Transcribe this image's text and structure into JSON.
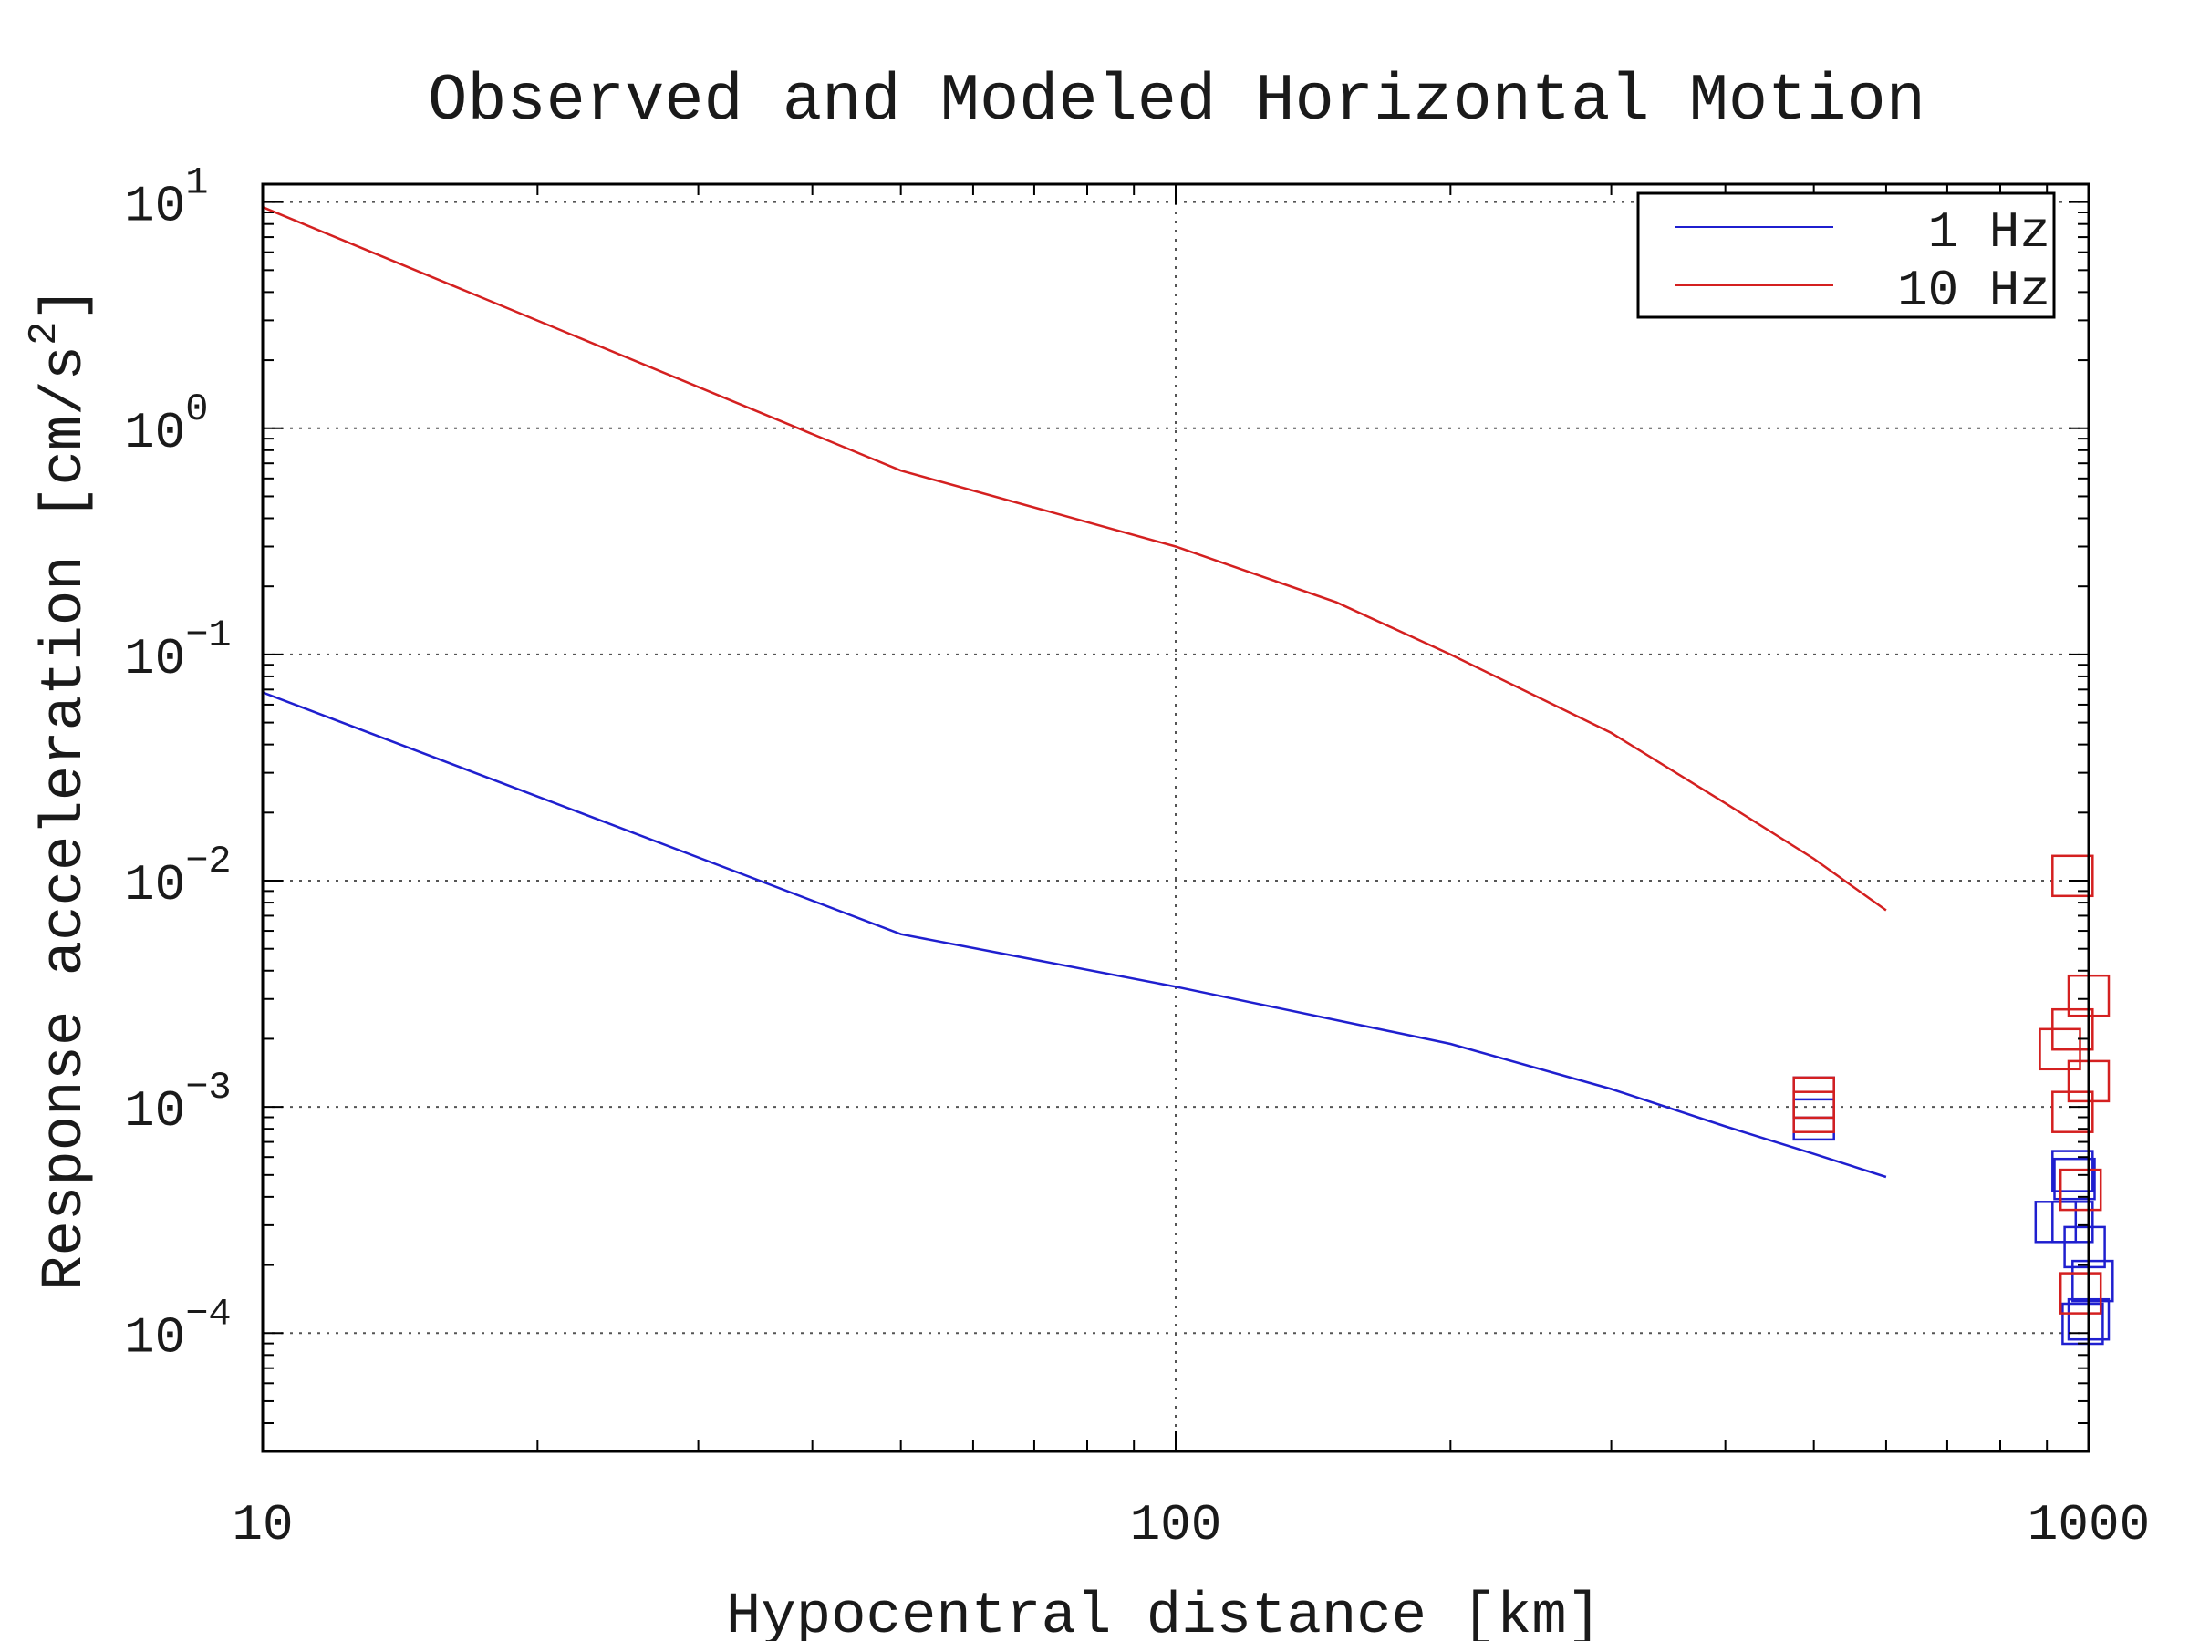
{
  "chart_data": {
    "type": "line",
    "title": "Observed and Modeled Horizontal Motion",
    "xlabel": "Hypocentral distance [km]",
    "ylabel_main": "Response acceleration [cm/s",
    "ylabel_sup": "2",
    "ylabel_close": "]",
    "xscale": "log",
    "yscale": "log",
    "xlim": [
      10,
      1000
    ],
    "ylim": [
      3e-05,
      12
    ],
    "grid": true,
    "legend_position": "top-right",
    "x_ticks": [
      {
        "value": 10,
        "label": "10"
      },
      {
        "value": 100,
        "label": "100"
      },
      {
        "value": 1000,
        "label": "1000"
      }
    ],
    "y_ticks": [
      {
        "value": 10,
        "base": "10",
        "exp": "1"
      },
      {
        "value": 1,
        "base": "10",
        "exp": "0"
      },
      {
        "value": 0.1,
        "base": "10",
        "exp": "−1"
      },
      {
        "value": 0.01,
        "base": "10",
        "exp": "−2"
      },
      {
        "value": 0.001,
        "base": "10",
        "exp": "−3"
      },
      {
        "value": 0.0001,
        "base": "10",
        "exp": "−4"
      }
    ],
    "series": [
      {
        "name": "1 Hz",
        "color": "#1f1fcf",
        "x": [
          10,
          50,
          100,
          200,
          300,
          400,
          500,
          600
        ],
        "y": [
          0.068,
          0.0058,
          0.0034,
          0.0019,
          0.0012,
          0.00082,
          0.00062,
          0.00049
        ]
      },
      {
        "name": "10 Hz",
        "color": "#d42020",
        "x": [
          10,
          50,
          100,
          150,
          200,
          300,
          400,
          500,
          600
        ],
        "y": [
          9.5,
          0.65,
          0.3,
          0.17,
          0.1,
          0.045,
          0.022,
          0.0125,
          0.0074
        ]
      }
    ],
    "observed": [
      {
        "series": "1 Hz",
        "color": "#1f1fcf",
        "points": [
          {
            "x": 500,
            "y": 0.0011
          },
          {
            "x": 500,
            "y": 0.00088
          },
          {
            "x": 920,
            "y": 0.00031
          },
          {
            "x": 960,
            "y": 0.00052
          },
          {
            "x": 965,
            "y": 0.00048
          },
          {
            "x": 960,
            "y": 0.00031
          },
          {
            "x": 990,
            "y": 0.00024
          },
          {
            "x": 1010,
            "y": 0.00017
          },
          {
            "x": 1000,
            "y": 0.000115
          },
          {
            "x": 985,
            "y": 0.00011
          }
        ]
      },
      {
        "series": "10 Hz",
        "color": "#d42020",
        "points": [
          {
            "x": 500,
            "y": 0.0011
          },
          {
            "x": 500,
            "y": 0.00095
          },
          {
            "x": 960,
            "y": 0.0105
          },
          {
            "x": 1000,
            "y": 0.0031
          },
          {
            "x": 960,
            "y": 0.0022
          },
          {
            "x": 930,
            "y": 0.0018
          },
          {
            "x": 1000,
            "y": 0.0013
          },
          {
            "x": 960,
            "y": 0.00095
          },
          {
            "x": 980,
            "y": 0.00043
          },
          {
            "x": 980,
            "y": 0.00015
          }
        ]
      }
    ]
  }
}
